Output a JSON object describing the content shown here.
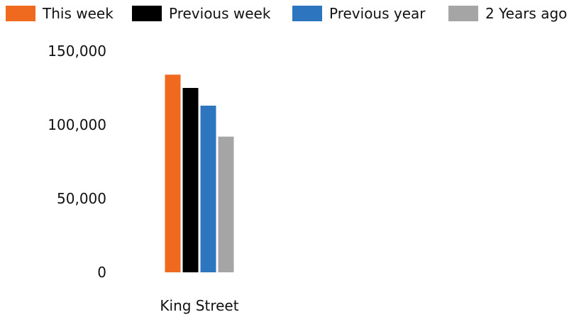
{
  "chart_data": {
    "type": "bar",
    "categories": [
      "King Street"
    ],
    "series": [
      {
        "name": "This week",
        "values": [
          134000
        ],
        "color": "#ef6a1e"
      },
      {
        "name": "Previous week",
        "values": [
          125000
        ],
        "color": "#000000"
      },
      {
        "name": "Previous year",
        "values": [
          113000
        ],
        "color": "#2e75bf"
      },
      {
        "name": "2 Years ago",
        "values": [
          92000
        ],
        "color": "#a5a5a5"
      }
    ],
    "ylim": [
      0,
      150000
    ],
    "yticks": [
      "0",
      "50,000",
      "100,000",
      "150,000"
    ],
    "ytick_values": [
      0,
      50000,
      100000,
      150000
    ],
    "grid": false,
    "legend_position": "top",
    "title": "",
    "xlabel": "",
    "ylabel": ""
  }
}
